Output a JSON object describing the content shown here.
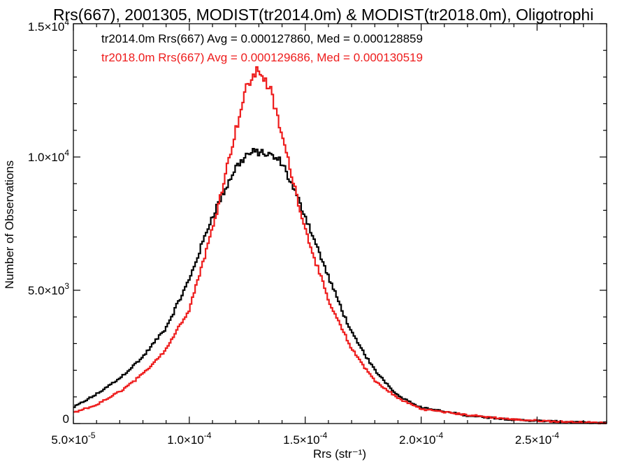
{
  "chart_data": {
    "type": "histogram",
    "title": "Rrs(667), 2001305, MODIST(tr2014.0m) & MODIST(tr2018.0m), Oligotrophi",
    "xlabel": "Rrs (str⁻¹)",
    "ylabel": "Number of Observations",
    "xlim": [
      5e-05,
      0.00028
    ],
    "ylim": [
      0,
      15000
    ],
    "x_ticks": [
      {
        "value": 5e-05,
        "mantissa": "5.0",
        "exp": "-5"
      },
      {
        "value": 0.0001,
        "mantissa": "1.0",
        "exp": "-4"
      },
      {
        "value": 0.00015,
        "mantissa": "1.5",
        "exp": "-4"
      },
      {
        "value": 0.0002,
        "mantissa": "2.0",
        "exp": "-4"
      },
      {
        "value": 0.00025,
        "mantissa": "2.5",
        "exp": "-4"
      }
    ],
    "y_ticks": [
      {
        "value": 0,
        "mantissa": "0",
        "exp": ""
      },
      {
        "value": 5000,
        "mantissa": "5.0",
        "exp": "3"
      },
      {
        "value": 10000,
        "mantissa": "1.0",
        "exp": "4"
      },
      {
        "value": 15000,
        "mantissa": "1.5",
        "exp": "4"
      }
    ],
    "grid": false,
    "legend_position": "top-left",
    "series": [
      {
        "name": "tr2014.0m Rrs(667) Avg = 0.000127860, Med = 0.000128859",
        "color": "#000000",
        "x": [
          5e-05,
          6e-05,
          7e-05,
          8e-05,
          9e-05,
          0.0001,
          0.00011,
          0.00012,
          0.000125,
          0.00013,
          0.000135,
          0.00014,
          0.00015,
          0.00016,
          0.00017,
          0.00018,
          0.00019,
          0.0002,
          0.00022,
          0.00024,
          0.00026,
          0.00028
        ],
        "y": [
          600,
          1100,
          1700,
          2500,
          3600,
          5400,
          7800,
          9600,
          10100,
          10200,
          10050,
          9800,
          7800,
          5500,
          3400,
          2000,
          1050,
          600,
          300,
          140,
          70,
          20
        ]
      },
      {
        "name": "tr2018.0m Rrs(667) Avg = 0.000129686, Med = 0.000130519",
        "color": "#ee1c1c",
        "x": [
          5e-05,
          6e-05,
          7e-05,
          8e-05,
          9e-05,
          0.0001,
          0.00011,
          0.00012,
          0.000125,
          0.00013,
          0.000135,
          0.00014,
          0.00015,
          0.00016,
          0.00017,
          0.00018,
          0.00019,
          0.0002,
          0.00022,
          0.00024,
          0.00026,
          0.00028
        ],
        "y": [
          400,
          700,
          1200,
          1850,
          2800,
          4300,
          7300,
          11000,
          12700,
          13300,
          12500,
          10800,
          7300,
          4600,
          2800,
          1600,
          950,
          550,
          320,
          150,
          70,
          20
        ]
      }
    ]
  }
}
